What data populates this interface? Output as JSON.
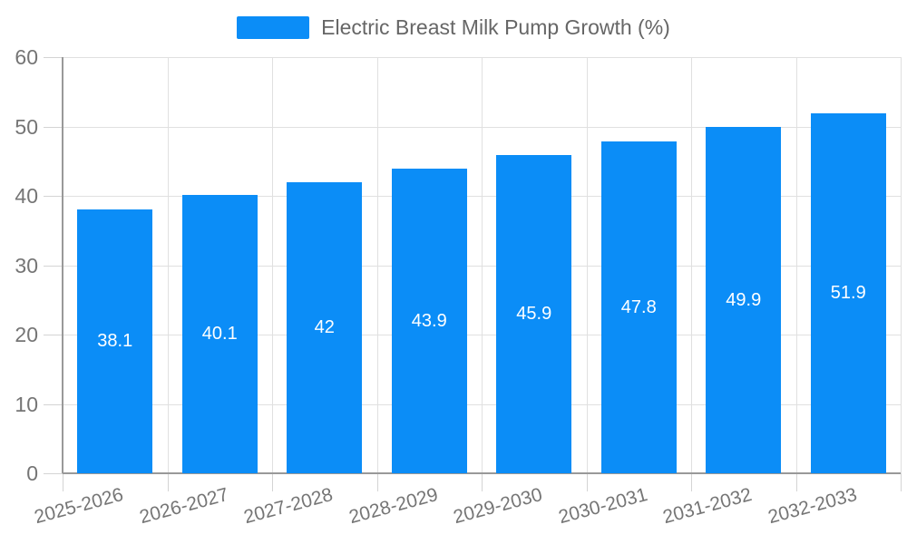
{
  "chart_data": {
    "type": "bar",
    "title": "Electric Breast Milk Pump Growth (%)",
    "categories": [
      "2025-2026",
      "2026-2027",
      "2027-2028",
      "2028-2029",
      "2029-2030",
      "2030-2031",
      "2031-2032",
      "2032-2033"
    ],
    "values": [
      38.1,
      40.1,
      42,
      43.9,
      45.9,
      47.8,
      49.9,
      51.9
    ],
    "value_labels": [
      "38.1",
      "40.1",
      "42",
      "43.9",
      "45.9",
      "47.8",
      "49.9",
      "51.9"
    ],
    "xlabel": "",
    "ylabel": "",
    "ylim": [
      0,
      60
    ],
    "y_ticks": [
      0,
      10,
      20,
      30,
      40,
      50,
      60
    ],
    "grid": true,
    "legend_position": "top-center",
    "x_label_rotation_deg": -15,
    "colors": {
      "bar": "#0b8df7",
      "grid": "#e0e0e0",
      "tick": "#d4d4d4",
      "axis": "#999999",
      "tick_text": "#757575",
      "legend_text": "#666666",
      "bar_label": "#ffffff",
      "background": "#ffffff"
    }
  }
}
